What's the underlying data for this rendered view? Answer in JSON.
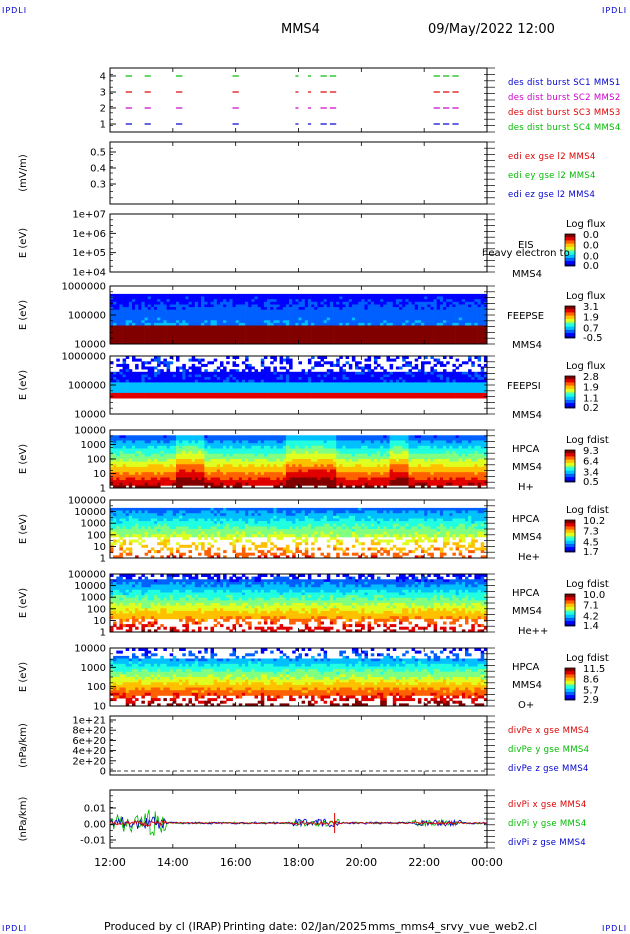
{
  "corner_label": "IPDLI",
  "header": {
    "spacecraft": "MMS4",
    "datetime": "09/May/2022 12:00"
  },
  "footer": {
    "producer": "Produced by cl (IRAP)",
    "printing_date": "Printing date: 02/Jan/2025",
    "file": "mms_mms4_srvy_vue_web2.cl"
  },
  "chart_data": {
    "type": "multi-panel",
    "x_ticks": [
      "12:00",
      "14:00",
      "16:00",
      "18:00",
      "20:00",
      "22:00",
      "00:00"
    ],
    "panels": [
      {
        "type": "line",
        "ylabel": "",
        "yticks": [
          "4",
          "3",
          "2",
          "1"
        ],
        "legend": [
          {
            "text": "des dist burst SC1 MMS1",
            "color": "#0000cc"
          },
          {
            "text": "des dist burst SC2 MMS2",
            "color": "#cc00cc"
          },
          {
            "text": "des dist burst SC3 MMS3",
            "color": "#dd0000"
          },
          {
            "text": "des dist burst SC4 MMS4",
            "color": "#00bb00"
          }
        ],
        "burst_intervals_hours": [
          [
            12.5,
            12.7
          ],
          [
            13.1,
            13.3
          ],
          [
            14.1,
            14.3
          ],
          [
            15.9,
            16.1
          ],
          [
            17.9,
            18.0
          ],
          [
            18.3,
            18.4
          ],
          [
            18.7,
            18.9
          ],
          [
            19.0,
            19.2
          ],
          [
            22.3,
            22.5
          ],
          [
            22.6,
            22.8
          ],
          [
            22.9,
            23.1
          ]
        ]
      },
      {
        "type": "line",
        "ylabel": "(mV/m)",
        "yticks": [
          "0.5",
          "0.4",
          "0.3"
        ],
        "legend": [
          {
            "text": "edi ex gse l2 MMS4",
            "color": "#dd0000"
          },
          {
            "text": "edi ey gse l2 MMS4",
            "color": "#00bb00"
          },
          {
            "text": "edi ez gse l2 MMS4",
            "color": "#0000cc"
          }
        ]
      },
      {
        "type": "heatmap",
        "ylabel": "E (eV)",
        "yticks": [
          "1e+07",
          "1e+06",
          "1e+05",
          "1e+04"
        ],
        "labels": [
          "EIS",
          "heavy electron to",
          "MMS4"
        ],
        "cbar_title": "Log flux",
        "cbar_ticks": [
          "0.0",
          "0.0",
          "0.0",
          "0.0"
        ]
      },
      {
        "type": "heatmap",
        "ylabel": "E (eV)",
        "yticks": [
          "1000000",
          "100000",
          "10000"
        ],
        "labels": [
          "FEEPSE",
          "MMS4"
        ],
        "cbar_title": "Log flux",
        "cbar_ticks": [
          "3.1",
          "1.9",
          "0.7",
          "-0.5"
        ]
      },
      {
        "type": "heatmap",
        "ylabel": "E (eV)",
        "yticks": [
          "1000000",
          "100000",
          "10000"
        ],
        "labels": [
          "FEEPSI",
          "MMS4"
        ],
        "cbar_title": "Log flux",
        "cbar_ticks": [
          "2.8",
          "1.9",
          "1.1",
          "0.2"
        ]
      },
      {
        "type": "heatmap",
        "ylabel": "E (eV)",
        "yticks": [
          "10000",
          "1000",
          "100",
          "10",
          "1"
        ],
        "labels": [
          "HPCA",
          "MMS4",
          "H+"
        ],
        "cbar_title": "Log fdist",
        "cbar_ticks": [
          "9.3",
          "6.4",
          "3.4",
          "0.5"
        ]
      },
      {
        "type": "heatmap",
        "ylabel": "E (eV)",
        "yticks": [
          "100000",
          "10000",
          "1000",
          "100",
          "10",
          "1"
        ],
        "labels": [
          "HPCA",
          "MMS4",
          "He+"
        ],
        "cbar_title": "Log fdist",
        "cbar_ticks": [
          "10.2",
          "7.3",
          "4.5",
          "1.7"
        ]
      },
      {
        "type": "heatmap",
        "ylabel": "E (eV)",
        "yticks": [
          "100000",
          "10000",
          "1000",
          "100",
          "10",
          "1"
        ],
        "labels": [
          "HPCA",
          "MMS4",
          "He++"
        ],
        "cbar_title": "Log fdist",
        "cbar_ticks": [
          "10.0",
          "7.1",
          "4.2",
          "1.4"
        ]
      },
      {
        "type": "heatmap",
        "ylabel": "E (eV)",
        "yticks": [
          "10000",
          "1000",
          "100",
          "10"
        ],
        "labels": [
          "HPCA",
          "MMS4",
          "O+"
        ],
        "cbar_title": "Log fdist",
        "cbar_ticks": [
          "11.5",
          "8.6",
          "5.7",
          "2.9"
        ]
      },
      {
        "type": "line",
        "ylabel": "(nPa/km)",
        "yticks": [
          "1e+21",
          "8e+20",
          "6e+20",
          "4e+20",
          "2e+20",
          "0"
        ],
        "legend": [
          {
            "text": "divPe x gse MMS4",
            "color": "#dd0000"
          },
          {
            "text": "divPe y gse MMS4",
            "color": "#00bb00"
          },
          {
            "text": "divPe z gse MMS4",
            "color": "#0000cc"
          }
        ]
      },
      {
        "type": "line",
        "ylabel": "(nPa/km)",
        "yticks": [
          "0.01",
          "0.00",
          "-0.01"
        ],
        "legend": [
          {
            "text": "divPi x gse MMS4",
            "color": "#dd0000"
          },
          {
            "text": "divPi y gse MMS4",
            "color": "#00bb00"
          },
          {
            "text": "divPi z gse MMS4",
            "color": "#0000cc"
          }
        ]
      }
    ]
  }
}
